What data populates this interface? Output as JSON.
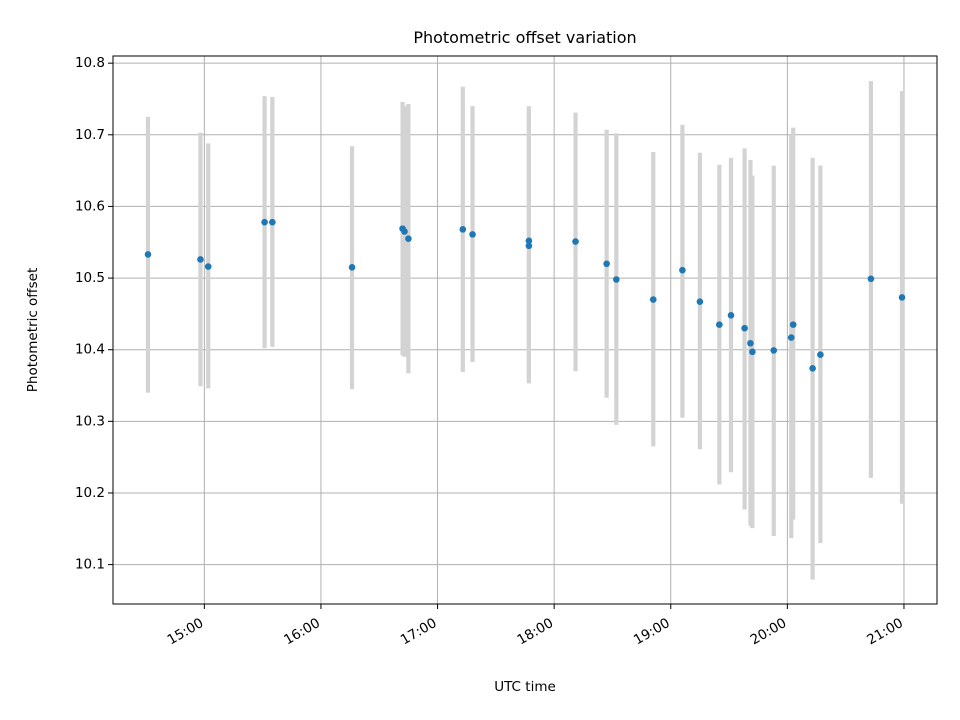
{
  "chart_data": {
    "type": "scatter",
    "title": "Photometric offset variation",
    "xlabel": "UTC time",
    "ylabel": "Photometric offset",
    "grid": true,
    "xlim": [
      "14:13",
      "21:17"
    ],
    "ylim": [
      10.045,
      10.81
    ],
    "xticks": [
      "15:00",
      "16:00",
      "17:00",
      "18:00",
      "19:00",
      "20:00",
      "21:00"
    ],
    "yticks": [
      10.1,
      10.2,
      10.3,
      10.4,
      10.5,
      10.6,
      10.7,
      10.8
    ],
    "ytick_labels": [
      "10.1",
      "10.2",
      "10.3",
      "10.4",
      "10.5",
      "10.6",
      "10.7",
      "10.8"
    ],
    "colors": {
      "points": "#1f77b4",
      "error_bars": "#d3d3d3",
      "grid": "#b0b0b0"
    },
    "series": [
      {
        "points": [
          {
            "x": "14:31",
            "y": 10.533,
            "ylow": 10.34,
            "yhigh": 10.725
          },
          {
            "x": "14:58",
            "y": 10.526,
            "ylow": 10.349,
            "yhigh": 10.703
          },
          {
            "x": "15:02",
            "y": 10.516,
            "ylow": 10.346,
            "yhigh": 10.688
          },
          {
            "x": "15:31",
            "y": 10.578,
            "ylow": 10.402,
            "yhigh": 10.754
          },
          {
            "x": "15:35",
            "y": 10.578,
            "ylow": 10.404,
            "yhigh": 10.753
          },
          {
            "x": "16:16",
            "y": 10.515,
            "ylow": 10.345,
            "yhigh": 10.684
          },
          {
            "x": "16:42",
            "y": 10.569,
            "ylow": 10.392,
            "yhigh": 10.746
          },
          {
            "x": "16:43",
            "y": 10.565,
            "ylow": 10.39,
            "yhigh": 10.74
          },
          {
            "x": "16:45",
            "y": 10.555,
            "ylow": 10.367,
            "yhigh": 10.743
          },
          {
            "x": "17:13",
            "y": 10.568,
            "ylow": 10.369,
            "yhigh": 10.767
          },
          {
            "x": "17:18",
            "y": 10.561,
            "ylow": 10.383,
            "yhigh": 10.74
          },
          {
            "x": "17:47",
            "y": 10.552,
            "ylow": 10.36,
            "yhigh": 10.74
          },
          {
            "x": "17:47",
            "y": 10.545,
            "ylow": 10.353,
            "yhigh": 10.737
          },
          {
            "x": "18:11",
            "y": 10.551,
            "ylow": 10.37,
            "yhigh": 10.731
          },
          {
            "x": "18:27",
            "y": 10.52,
            "ylow": 10.333,
            "yhigh": 10.707
          },
          {
            "x": "18:32",
            "y": 10.498,
            "ylow": 10.295,
            "yhigh": 10.702
          },
          {
            "x": "18:51",
            "y": 10.47,
            "ylow": 10.265,
            "yhigh": 10.676
          },
          {
            "x": "19:06",
            "y": 10.511,
            "ylow": 10.305,
            "yhigh": 10.714
          },
          {
            "x": "19:15",
            "y": 10.467,
            "ylow": 10.261,
            "yhigh": 10.675
          },
          {
            "x": "19:25",
            "y": 10.435,
            "ylow": 10.212,
            "yhigh": 10.658
          },
          {
            "x": "19:31",
            "y": 10.448,
            "ylow": 10.229,
            "yhigh": 10.668
          },
          {
            "x": "19:38",
            "y": 10.43,
            "ylow": 10.177,
            "yhigh": 10.681
          },
          {
            "x": "19:41",
            "y": 10.409,
            "ylow": 10.154,
            "yhigh": 10.665
          },
          {
            "x": "19:42",
            "y": 10.397,
            "ylow": 10.151,
            "yhigh": 10.643
          },
          {
            "x": "19:53",
            "y": 10.399,
            "ylow": 10.14,
            "yhigh": 10.657
          },
          {
            "x": "20:02",
            "y": 10.417,
            "ylow": 10.137,
            "yhigh": 10.7
          },
          {
            "x": "20:03",
            "y": 10.435,
            "ylow": 10.163,
            "yhigh": 10.71
          },
          {
            "x": "20:13",
            "y": 10.374,
            "ylow": 10.079,
            "yhigh": 10.668
          },
          {
            "x": "20:17",
            "y": 10.393,
            "ylow": 10.13,
            "yhigh": 10.657
          },
          {
            "x": "20:43",
            "y": 10.499,
            "ylow": 10.221,
            "yhigh": 10.775
          },
          {
            "x": "20:59",
            "y": 10.473,
            "ylow": 10.185,
            "yhigh": 10.761
          }
        ]
      }
    ]
  }
}
